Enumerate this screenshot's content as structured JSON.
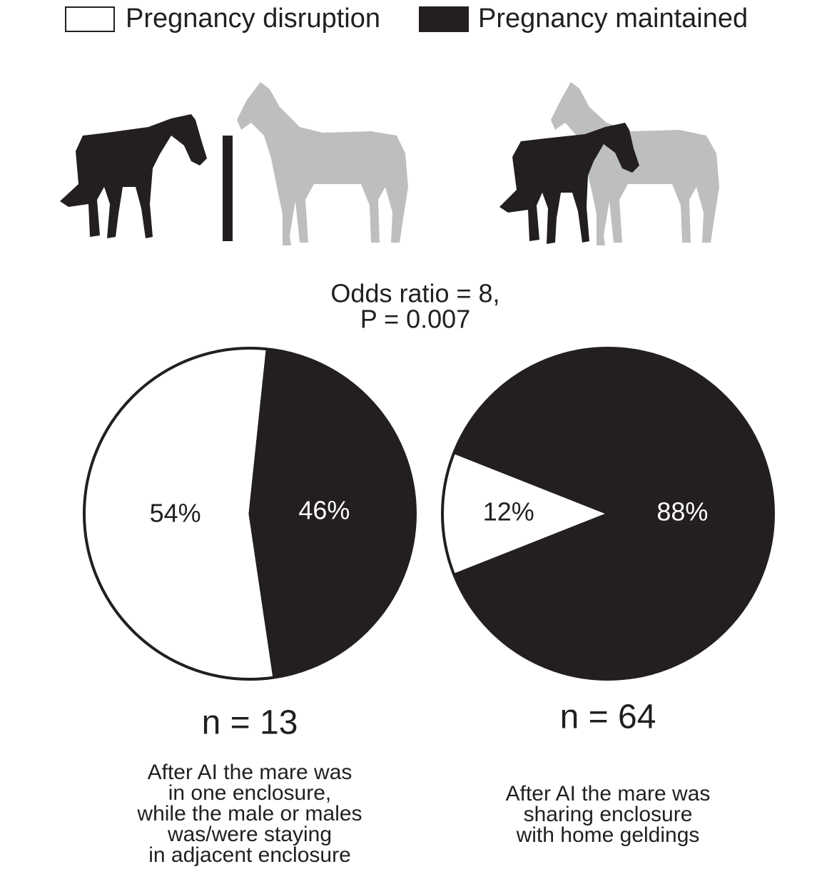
{
  "legend": {
    "series": [
      {
        "name": "Pregnancy disruption",
        "color": "#ffffff"
      },
      {
        "name": "Pregnancy maintained",
        "color": "#231f20"
      }
    ]
  },
  "annotation": [
    "Odds ratio = 8,",
    "P = 0.007"
  ],
  "chart_data": [
    {
      "type": "pie",
      "values": [
        54,
        46
      ],
      "value_labels": [
        "54%",
        "46%"
      ],
      "n_label": "n = 13",
      "caption": [
        "After AI the mare was",
        "in one enclosure,",
        "while the male or males",
        "was/were staying",
        "in adjacent enclosure"
      ]
    },
    {
      "type": "pie",
      "values": [
        12,
        88
      ],
      "value_labels": [
        "12%",
        "88%"
      ],
      "n_label": "n = 64",
      "caption": [
        "After AI the mare was",
        "sharing enclosure",
        "with home geldings"
      ]
    }
  ]
}
